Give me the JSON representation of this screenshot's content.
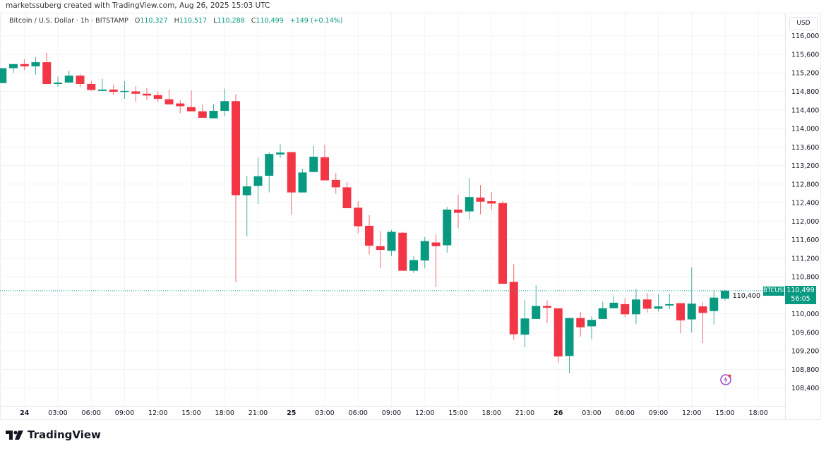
{
  "credit": "marketssuberg created with TradingView.com, Aug 26, 2025 15:03 UTC",
  "legend": {
    "symbol": "Bitcoin / U.S. Dollar · 1h · BITSTAMP",
    "o_label": "O",
    "o": "110,327",
    "h_label": "H",
    "h": "110,517",
    "l_label": "L",
    "l": "110,288",
    "c_label": "C",
    "c": "110,499",
    "change": "+149 (+0.14%)"
  },
  "price_axis": {
    "currency": "USD"
  },
  "last_price": {
    "symbol": "BTCUSD",
    "price": "110,499",
    "countdown": "56:05",
    "value": 110499
  },
  "brand": "TradingView",
  "colors": {
    "up": "#089981",
    "down": "#F23645",
    "grid": "#f2f3f5"
  },
  "icons": {
    "bottom_right": "lightning-bolt-badge-icon",
    "logo": "tradingview-logo-icon"
  },
  "chart_data": {
    "type": "candlestick",
    "interval": "1h",
    "x_start": "2025-08-23 22:00",
    "ylim": [
      108100,
      116150
    ],
    "grid": true,
    "y_ticks": [
      "108,400",
      "108,800",
      "109,200",
      "109,600",
      "110,000",
      "110,400",
      "110,800",
      "111,200",
      "111,600",
      "112,000",
      "112,400",
      "112,800",
      "113,200",
      "113,600",
      "114,000",
      "114,400",
      "114,800",
      "115,200",
      "115,600",
      "116,000"
    ],
    "x_ticks": [
      "24",
      "03:00",
      "06:00",
      "09:00",
      "12:00",
      "15:00",
      "18:00",
      "21:00",
      "25",
      "03:00",
      "06:00",
      "09:00",
      "12:00",
      "15:00",
      "18:00",
      "21:00",
      "26",
      "03:00",
      "06:00",
      "09:00",
      "12:00",
      "15:00",
      "18:00"
    ],
    "ohlc": [
      [
        114980,
        115300,
        114980,
        115300
      ],
      [
        115300,
        115390,
        115200,
        115390
      ],
      [
        115390,
        115500,
        115260,
        115340
      ],
      [
        115340,
        115540,
        115160,
        115430
      ],
      [
        115430,
        115630,
        114960,
        114960
      ],
      [
        114960,
        115120,
        114900,
        114990
      ],
      [
        114990,
        115250,
        114990,
        115140
      ],
      [
        115140,
        115170,
        114890,
        114960
      ],
      [
        114960,
        115030,
        114810,
        114830
      ],
      [
        114810,
        115070,
        114810,
        114840
      ],
      [
        114840,
        114940,
        114720,
        114790
      ],
      [
        114790,
        115020,
        114640,
        114810
      ],
      [
        114800,
        114910,
        114570,
        114750
      ],
      [
        114750,
        114870,
        114620,
        114710
      ],
      [
        114720,
        114800,
        114570,
        114640
      ],
      [
        114630,
        114840,
        114520,
        114520
      ],
      [
        114540,
        114610,
        114330,
        114480
      ],
      [
        114460,
        114820,
        114370,
        114370
      ],
      [
        114370,
        114520,
        114230,
        114230
      ],
      [
        114220,
        114530,
        114220,
        114380
      ],
      [
        114380,
        114860,
        114260,
        114590
      ],
      [
        114590,
        114740,
        110680,
        112560
      ],
      [
        112560,
        112980,
        111670,
        112750
      ],
      [
        112760,
        113380,
        112370,
        112970
      ],
      [
        112980,
        113490,
        112620,
        113450
      ],
      [
        113440,
        113660,
        113360,
        113480
      ],
      [
        113490,
        113490,
        112140,
        112620
      ],
      [
        112620,
        113130,
        112620,
        113050
      ],
      [
        113060,
        113620,
        113060,
        113390
      ],
      [
        113380,
        113650,
        112880,
        112880
      ],
      [
        112890,
        113040,
        112590,
        112730
      ],
      [
        112730,
        112840,
        112280,
        112280
      ],
      [
        112290,
        112430,
        111740,
        111890
      ],
      [
        111900,
        112130,
        111280,
        111470
      ],
      [
        111460,
        111790,
        110990,
        111380
      ],
      [
        111360,
        111810,
        111250,
        111770
      ],
      [
        111750,
        111770,
        110930,
        110930
      ],
      [
        110930,
        111250,
        110880,
        111160
      ],
      [
        111150,
        111660,
        110980,
        111570
      ],
      [
        111540,
        111720,
        110580,
        111460
      ],
      [
        111480,
        112310,
        111320,
        112250
      ],
      [
        112250,
        112570,
        111850,
        112180
      ],
      [
        112210,
        112930,
        112040,
        112520
      ],
      [
        112510,
        112780,
        112150,
        112420
      ],
      [
        112430,
        112630,
        112250,
        112380
      ],
      [
        112390,
        112430,
        110650,
        110650
      ],
      [
        110690,
        111070,
        109440,
        109560
      ],
      [
        109550,
        110290,
        109280,
        109900
      ],
      [
        109890,
        110620,
        109890,
        110170
      ],
      [
        110170,
        110290,
        109800,
        110130
      ],
      [
        110120,
        110120,
        108950,
        109080
      ],
      [
        109090,
        109910,
        108720,
        109910
      ],
      [
        109910,
        110040,
        109510,
        109710
      ],
      [
        109730,
        109950,
        109450,
        109870
      ],
      [
        109890,
        110260,
        109890,
        110120
      ],
      [
        110120,
        110380,
        110120,
        110240
      ],
      [
        110210,
        110340,
        109930,
        109990
      ],
      [
        109990,
        110540,
        109780,
        110310
      ],
      [
        110310,
        110450,
        110030,
        110110
      ],
      [
        110110,
        110430,
        110050,
        110160
      ],
      [
        110180,
        110430,
        110100,
        110210
      ],
      [
        110230,
        110230,
        109580,
        109860
      ],
      [
        109880,
        111000,
        109600,
        110220
      ],
      [
        110160,
        110250,
        109370,
        110020
      ],
      [
        110060,
        110520,
        109770,
        110350
      ],
      [
        110327,
        110517,
        110288,
        110499
      ]
    ]
  }
}
